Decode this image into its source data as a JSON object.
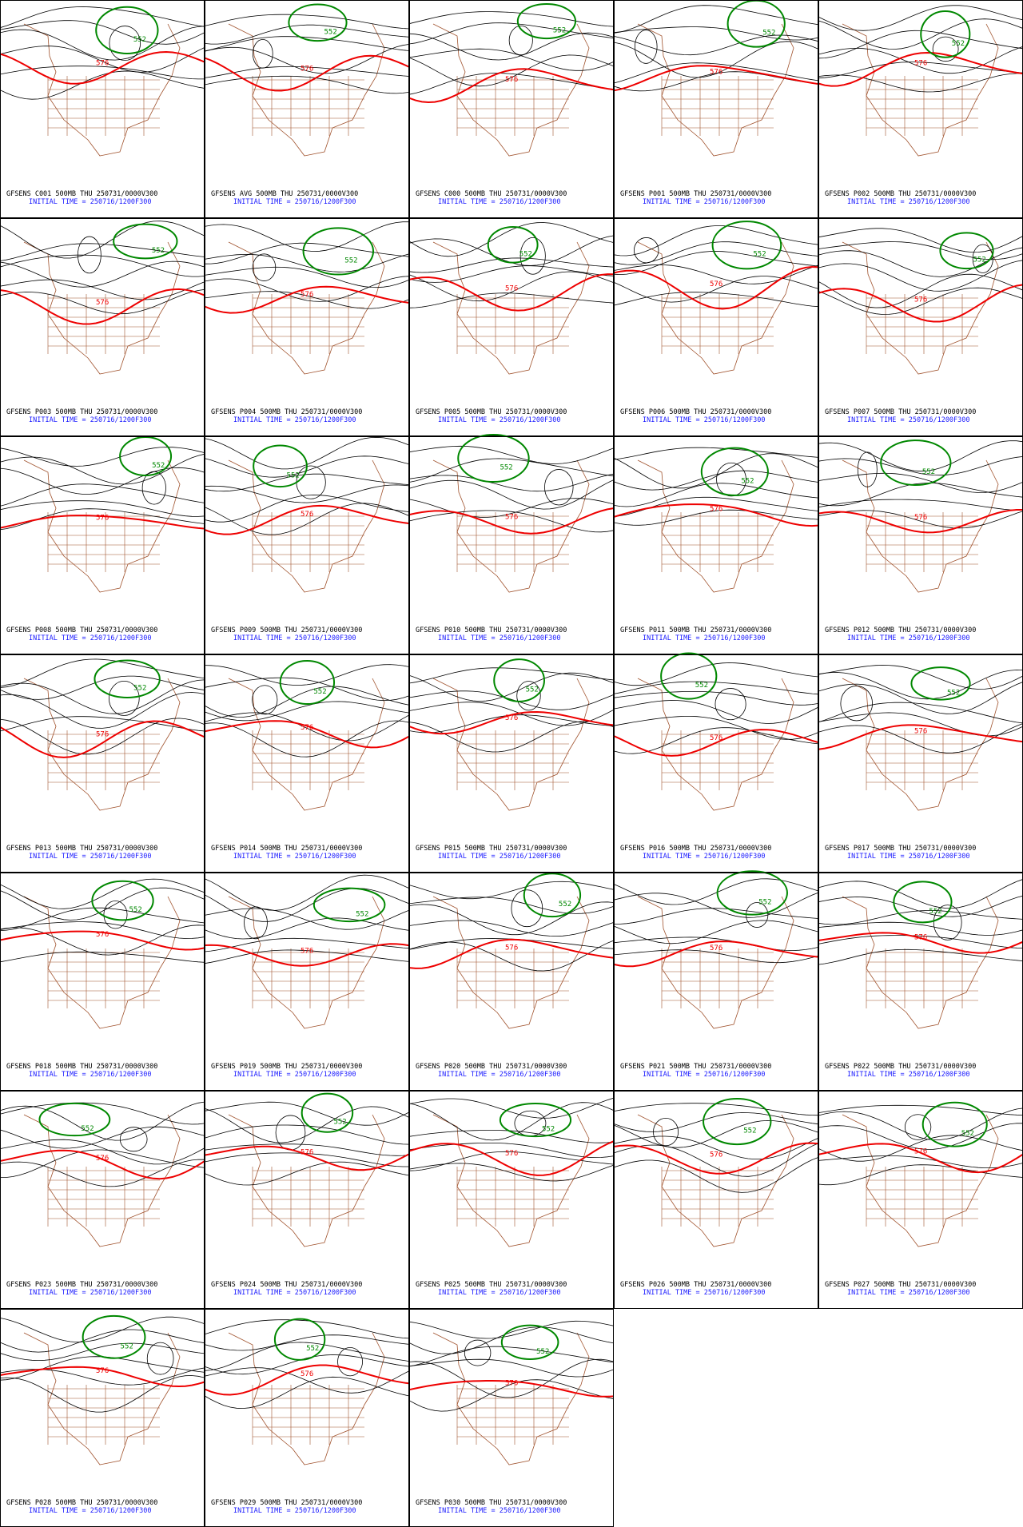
{
  "panels": [
    {
      "title": "GFSENS C001 500MB THU 250731/0000V300",
      "initial_time": "INITIAL TIME = 250716/1200F300",
      "contour_labels": [
        "576",
        "552"
      ]
    },
    {
      "title": "GFSENS AVG 500MB THU 250731/0000V300",
      "initial_time": "INITIAL TIME = 250716/1200F300",
      "contour_labels": [
        "576",
        "552"
      ]
    },
    {
      "title": "GFSENS C000 500MB THU 250731/0000V300",
      "initial_time": "INITIAL TIME = 250716/1200F300",
      "contour_labels": [
        "576",
        "552"
      ]
    },
    {
      "title": "GFSENS P001 500MB THU 250731/0000V300",
      "initial_time": "INITIAL TIME = 250716/1200F300",
      "contour_labels": [
        "576",
        "552"
      ]
    },
    {
      "title": "GFSENS P002 500MB THU 250731/0000V300",
      "initial_time": "INITIAL TIME = 250716/1200F300",
      "contour_labels": [
        "576",
        "552"
      ]
    },
    {
      "title": "GFSENS P003 500MB THU 250731/0000V300",
      "initial_time": "INITIAL TIME = 250716/1200F300",
      "contour_labels": [
        "576",
        "552"
      ]
    },
    {
      "title": "GFSENS P004 500MB THU 250731/0000V300",
      "initial_time": "INITIAL TIME = 250716/1200F300",
      "contour_labels": [
        "576",
        "552"
      ]
    },
    {
      "title": "GFSENS P005 500MB THU 250731/0000V300",
      "initial_time": "INITIAL TIME = 250716/1200F300",
      "contour_labels": [
        "576",
        "552"
      ]
    },
    {
      "title": "GFSENS P006 500MB THU 250731/0000V300",
      "initial_time": "INITIAL TIME = 250716/1200F300",
      "contour_labels": [
        "576",
        "552"
      ]
    },
    {
      "title": "GFSENS P007 500MB THU 250731/0000V300",
      "initial_time": "INITIAL TIME = 250716/1200F300",
      "contour_labels": [
        "576",
        "552"
      ]
    },
    {
      "title": "GFSENS P008 500MB THU 250731/0000V300",
      "initial_time": "INITIAL TIME = 250716/1200F300",
      "contour_labels": [
        "576",
        "552"
      ]
    },
    {
      "title": "GFSENS P009 500MB THU 250731/0000V300",
      "initial_time": "INITIAL TIME = 250716/1200F300",
      "contour_labels": [
        "576",
        "552"
      ]
    },
    {
      "title": "GFSENS P010 500MB THU 250731/0000V300",
      "initial_time": "INITIAL TIME = 250716/1200F300",
      "contour_labels": [
        "576",
        "552"
      ]
    },
    {
      "title": "GFSENS P011 500MB THU 250731/0000V300",
      "initial_time": "INITIAL TIME = 250716/1200F300",
      "contour_labels": [
        "576",
        "552"
      ]
    },
    {
      "title": "GFSENS P012 500MB THU 250731/0000V300",
      "initial_time": "INITIAL TIME = 250716/1200F300",
      "contour_labels": [
        "576",
        "552"
      ]
    },
    {
      "title": "GFSENS P013 500MB THU 250731/0000V300",
      "initial_time": "INITIAL TIME = 250716/1200F300",
      "contour_labels": [
        "576",
        "552"
      ]
    },
    {
      "title": "GFSENS P014 500MB THU 250731/0000V300",
      "initial_time": "INITIAL TIME = 250716/1200F300",
      "contour_labels": [
        "576",
        "552"
      ]
    },
    {
      "title": "GFSENS P015 500MB THU 250731/0000V300",
      "initial_time": "INITIAL TIME = 250716/1200F300",
      "contour_labels": [
        "576",
        "552"
      ]
    },
    {
      "title": "GFSENS P016 500MB THU 250731/0000V300",
      "initial_time": "INITIAL TIME = 250716/1200F300",
      "contour_labels": [
        "576",
        "552"
      ]
    },
    {
      "title": "GFSENS P017 500MB THU 250731/0000V300",
      "initial_time": "INITIAL TIME = 250716/1200F300",
      "contour_labels": [
        "576",
        "552"
      ]
    },
    {
      "title": "GFSENS P018 500MB THU 250731/0000V300",
      "initial_time": "INITIAL TIME = 250716/1200F300",
      "contour_labels": [
        "576",
        "552"
      ]
    },
    {
      "title": "GFSENS P019 500MB THU 250731/0000V300",
      "initial_time": "INITIAL TIME = 250716/1200F300",
      "contour_labels": [
        "576",
        "552"
      ]
    },
    {
      "title": "GFSENS P020 500MB THU 250731/0000V300",
      "initial_time": "INITIAL TIME = 250716/1200F300",
      "contour_labels": [
        "576",
        "552"
      ]
    },
    {
      "title": "GFSENS P021 500MB THU 250731/0000V300",
      "initial_time": "INITIAL TIME = 250716/1200F300",
      "contour_labels": [
        "576",
        "552"
      ]
    },
    {
      "title": "GFSENS P022 500MB THU 250731/0000V300",
      "initial_time": "INITIAL TIME = 250716/1200F300",
      "contour_labels": [
        "576",
        "552"
      ]
    },
    {
      "title": "GFSENS P023 500MB THU 250731/0000V300",
      "initial_time": "INITIAL TIME = 250716/1200F300",
      "contour_labels": [
        "576",
        "552"
      ]
    },
    {
      "title": "GFSENS P024 500MB THU 250731/0000V300",
      "initial_time": "INITIAL TIME = 250716/1200F300",
      "contour_labels": [
        "576",
        "552"
      ]
    },
    {
      "title": "GFSENS P025 500MB THU 250731/0000V300",
      "initial_time": "INITIAL TIME = 250716/1200F300",
      "contour_labels": [
        "576",
        "552"
      ]
    },
    {
      "title": "GFSENS P026 500MB THU 250731/0000V300",
      "initial_time": "INITIAL TIME = 250716/1200F300",
      "contour_labels": [
        "576",
        "552"
      ]
    },
    {
      "title": "GFSENS P027 500MB THU 250731/0000V300",
      "initial_time": "INITIAL TIME = 250716/1200F300",
      "contour_labels": [
        "576",
        "552"
      ]
    },
    {
      "title": "GFSENS P028 500MB THU 250731/0000V300",
      "initial_time": "INITIAL TIME = 250716/1200F300",
      "contour_labels": [
        "576",
        "552"
      ]
    },
    {
      "title": "GFSENS P029 500MB THU 250731/0000V300",
      "initial_time": "INITIAL TIME = 250716/1200F300",
      "contour_labels": [
        "576",
        "552"
      ]
    },
    {
      "title": "GFSENS P030 500MB THU 250731/0000V300",
      "initial_time": "INITIAL TIME = 250716/1200F300",
      "contour_labels": [
        "576",
        "552"
      ]
    }
  ]
}
